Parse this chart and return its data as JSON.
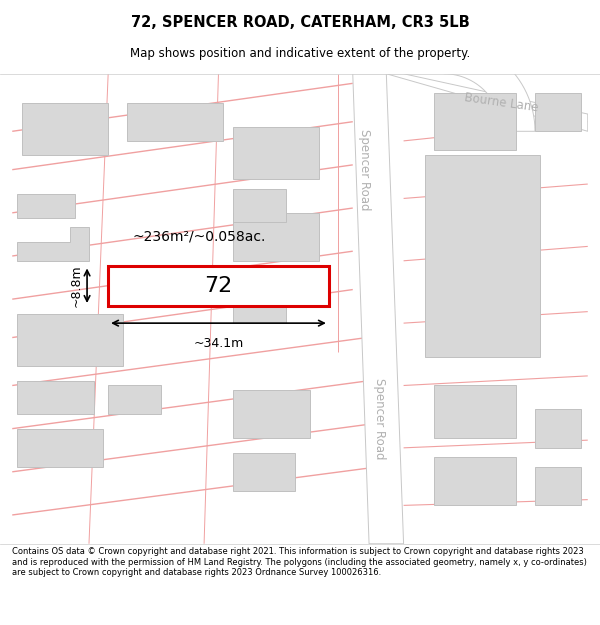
{
  "title": "72, SPENCER ROAD, CATERHAM, CR3 5LB",
  "subtitle": "Map shows position and indicative extent of the property.",
  "footer": "Contains OS data © Crown copyright and database right 2021. This information is subject to Crown copyright and database rights 2023 and is reproduced with the permission of HM Land Registry. The polygons (including the associated geometry, namely x, y co-ordinates) are subject to Crown copyright and database rights 2023 Ordnance Survey 100026316.",
  "bg_color": "#ffffff",
  "map_bg": "#f7f7f7",
  "road_fill": "#ffffff",
  "road_border": "#c8c8c8",
  "cadastral_color": "#f0a0a0",
  "building_fill": "#d8d8d8",
  "building_border": "#c0c0c0",
  "highlight_fill": "#ffffff",
  "highlight_border": "#dd0000",
  "street_label_color": "#b0b0b0",
  "area_label": "~236m²/~0.058ac.",
  "property_label": "72",
  "width_label": "~34.1m",
  "height_label": "~8.8m",
  "figsize": [
    6.0,
    6.25
  ],
  "dpi": 100
}
